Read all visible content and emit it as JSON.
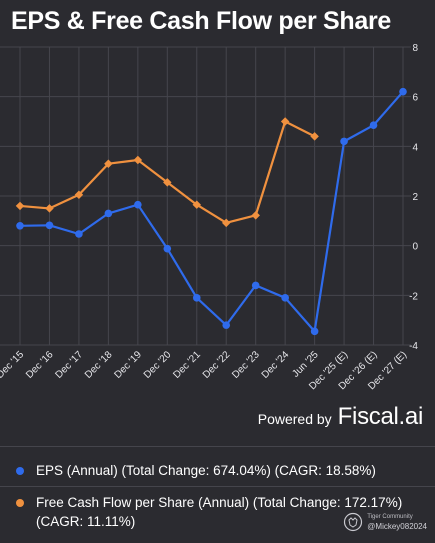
{
  "header": {
    "title": "EPS & Free Cash Flow per Share"
  },
  "chart_data": {
    "type": "line",
    "categories": [
      "Dec '15",
      "Dec '16",
      "Dec '17",
      "Dec '18",
      "Dec '19",
      "Dec '20",
      "Dec '21",
      "Dec '22",
      "Dec '23",
      "Dec '24",
      "Jun '25",
      "Dec '25 (E)",
      "Dec '26 (E)",
      "Dec '27 (E)"
    ],
    "tick_labels": [
      "Dec '15",
      "Dec '16",
      "Dec '17",
      "Dec '18",
      "Dec '19",
      "Dec '20",
      "Dec '21",
      "Dec '22",
      "Dec '23",
      "Dec '24",
      "Jun '25",
      "Dec '25 (E)",
      "Dec '26 (E)",
      "Dec '27 (E)"
    ],
    "series": [
      {
        "name": "EPS (Annual)",
        "color": "#2f6bec",
        "values": [
          0.8,
          0.82,
          0.47,
          1.3,
          1.65,
          -0.12,
          -2.1,
          -3.2,
          -1.6,
          -2.1,
          -3.45,
          4.2,
          4.85,
          6.2
        ]
      },
      {
        "name": "Free Cash Flow per Share (Annual)",
        "color": "#f0913f",
        "values": [
          1.6,
          1.5,
          2.05,
          3.3,
          3.45,
          2.55,
          1.65,
          0.92,
          1.22,
          5.0,
          4.4,
          null,
          null,
          null
        ]
      }
    ],
    "y_ticks": [
      8,
      6,
      4,
      2,
      0,
      -2,
      -4
    ],
    "ylim": [
      -4,
      8
    ],
    "grid": true,
    "y_axis_position": "right",
    "legend_position": "bottom"
  },
  "branding": {
    "powered_by": "Powered by",
    "brand": "Fiscal.ai"
  },
  "legend": [
    {
      "color": "#2f6bec",
      "text": "EPS (Annual) (Total Change: 674.04%) (CAGR: 18.58%)"
    },
    {
      "color": "#f0913f",
      "text": "Free Cash Flow per Share (Annual) (Total Change: 172.17%) (CAGR: 11.11%)"
    }
  ],
  "watermark": {
    "community": "Tiger Community",
    "user": "@Mickey082024"
  }
}
